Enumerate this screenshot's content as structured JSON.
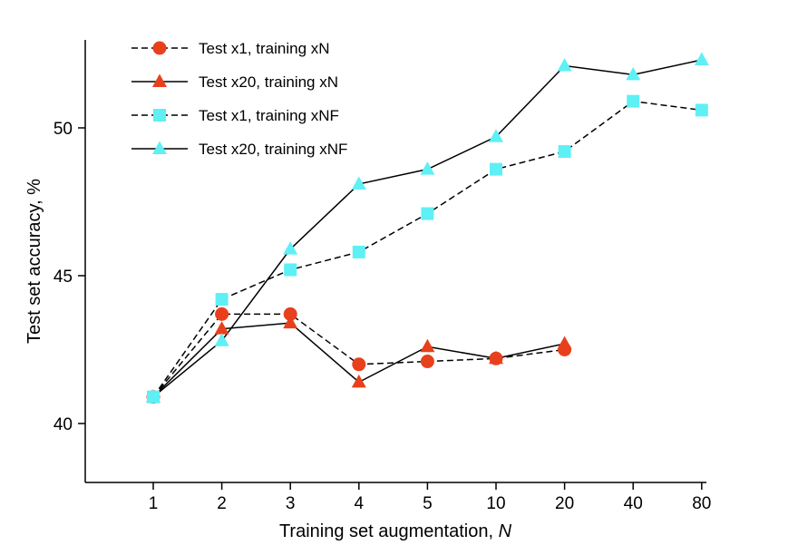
{
  "chart_data": {
    "type": "line",
    "title": "",
    "xlabel": "Training set augmentation, ",
    "xlabel_italic": "N",
    "ylabel": "Test set accuracy, %",
    "categories": [
      "1",
      "2",
      "3",
      "4",
      "5",
      "10",
      "20",
      "40",
      "80"
    ],
    "ylim": [
      38,
      53
    ],
    "yticks": [
      40,
      45,
      50
    ],
    "grid": false,
    "legend_position": "top-left",
    "series": [
      {
        "name": "Test x1, training xN",
        "line": "dashed",
        "marker": "circle",
        "color": "#e8401c",
        "values": [
          40.9,
          43.7,
          43.7,
          42.0,
          42.1,
          42.2,
          42.5,
          null,
          null
        ]
      },
      {
        "name": "Test x20, training xN",
        "line": "solid",
        "marker": "triangle",
        "color": "#e8401c",
        "values": [
          40.9,
          43.2,
          43.4,
          41.4,
          42.6,
          42.2,
          42.7,
          null,
          null
        ]
      },
      {
        "name": "Test x1, training xNF",
        "line": "dashed",
        "marker": "square",
        "color": "#5ef0f5",
        "values": [
          40.9,
          44.2,
          45.2,
          45.8,
          47.1,
          48.6,
          49.2,
          50.9,
          50.6
        ]
      },
      {
        "name": "Test x20, training xNF",
        "line": "solid",
        "marker": "triangle",
        "color": "#5ef0f5",
        "values": [
          40.9,
          42.8,
          45.9,
          48.1,
          48.6,
          49.7,
          52.1,
          51.8,
          52.3
        ]
      }
    ]
  }
}
